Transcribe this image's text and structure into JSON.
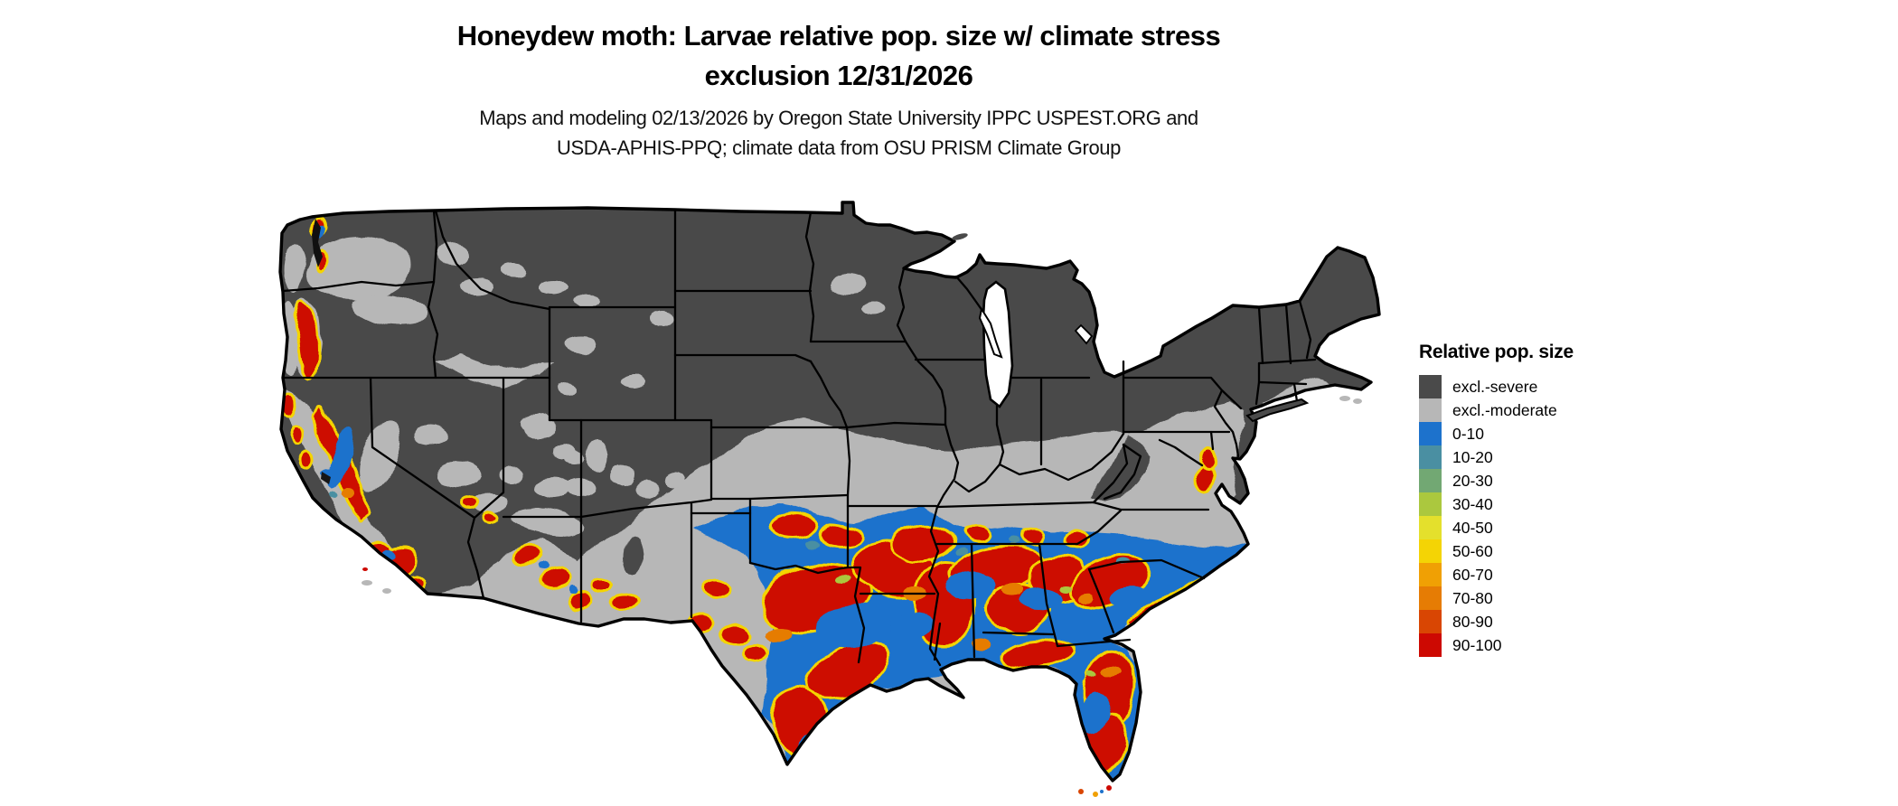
{
  "title": {
    "line1": "Honeydew moth: Larvae relative pop. size w/ climate stress",
    "line2": "exclusion 12/31/2026"
  },
  "subtitle": {
    "line1": "Maps and modeling 02/13/2026 by Oregon State University IPPC USPEST.ORG and",
    "line2": "USDA-APHIS-PPQ; climate data from OSU PRISM Climate Group"
  },
  "legend": {
    "title": "Relative pop. size",
    "items": [
      {
        "label": "excl.-severe",
        "key": "excl_severe"
      },
      {
        "label": "excl.-moderate",
        "key": "excl_moderate"
      },
      {
        "label": "0-10",
        "key": "p0"
      },
      {
        "label": "10-20",
        "key": "p10"
      },
      {
        "label": "20-30",
        "key": "p20"
      },
      {
        "label": "30-40",
        "key": "p30"
      },
      {
        "label": "40-50",
        "key": "p40"
      },
      {
        "label": "50-60",
        "key": "p50"
      },
      {
        "label": "60-70",
        "key": "p60"
      },
      {
        "label": "70-80",
        "key": "p70"
      },
      {
        "label": "80-90",
        "key": "p80"
      },
      {
        "label": "90-100",
        "key": "p90"
      }
    ]
  },
  "map": {
    "palette": {
      "excl_severe": "#4a4a4a",
      "excl_moderate": "#b7b7b7",
      "p0": "#1d72cc",
      "p10": "#4a8fa2",
      "p20": "#72a873",
      "p30": "#abc83e",
      "p40": "#e4e02c",
      "p50": "#f4d405",
      "p60": "#f0a004",
      "p70": "#e67c04",
      "p80": "#d94603",
      "p90": "#cd0902",
      "border": "#000000",
      "water": "#ffffff"
    }
  }
}
